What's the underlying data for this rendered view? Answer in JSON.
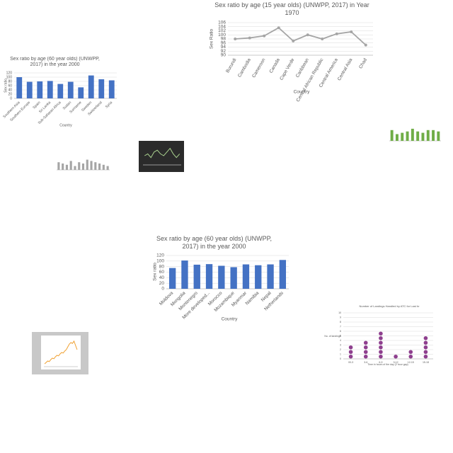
{
  "chart_data": [
    {
      "type": "line",
      "title": "Sex ratio by age (15 year olds) (UNWPP, 2017) in Year 1970",
      "y_label": "Sex Ratio",
      "x_label": "Country",
      "categories": [
        "Burundi",
        "Cambodia",
        "Cameroon",
        "Canada",
        "Cape Verde",
        "Caribbean",
        "Central African Republic",
        "Central America",
        "Central Asia",
        "Chad"
      ],
      "values": [
        98,
        98.5,
        99.5,
        103.5,
        97,
        100,
        98,
        100.5,
        101.5,
        95
      ],
      "color": "#a5a5a5",
      "ylim": [
        90,
        106
      ],
      "yticks": [
        90,
        92,
        94,
        96,
        98,
        100,
        102,
        104,
        106
      ],
      "grid": true
    },
    {
      "type": "bar",
      "title": "Sex ratio by age (60 year olds) (UNWPP, 2017) in the year 2000",
      "y_label": "Sex ratio",
      "x_label": "Country",
      "categories": [
        "Southern Asia",
        "Southern Europe",
        "Spain",
        "Sri Lanka",
        "Sub-Saharan Africa",
        "Sudan",
        "Suriname",
        "Sweden",
        "Switzerland",
        "Syria"
      ],
      "values": [
        100,
        78,
        80,
        82,
        68,
        78,
        52,
        108,
        90,
        85
      ],
      "color": "#4472c4",
      "ylim": [
        0,
        120
      ],
      "yticks": [
        0,
        20,
        40,
        60,
        80,
        100,
        120
      ],
      "grid": true
    },
    {
      "type": "bar",
      "title": "Sex ratio by age (60 year olds) (UNWPP, 2017) in the year 2000",
      "y_label": "Sex ratio",
      "x_label": "Country",
      "categories": [
        "Moldova",
        "Mongolia",
        "Montenegro",
        "More developed...",
        "Morocco",
        "Mozambique",
        "Myanmar",
        "Namibia",
        "Nepal",
        "Netherlands"
      ],
      "values": [
        75,
        102,
        87,
        89,
        83,
        78,
        88,
        85,
        88,
        104
      ],
      "color": "#4472c4",
      "ylim": [
        0,
        120
      ],
      "yticks": [
        0,
        20,
        40,
        60,
        80,
        100,
        120
      ],
      "grid": true
    },
    {
      "type": "dot",
      "title": "Number of Landings Handled by ATC for Last hr",
      "y_label": "No. of landings",
      "x_label": "Time in hours of the day (2 hour gap)",
      "categories": [
        "00-3",
        "3-6",
        "6-9",
        "9-12",
        "12-15",
        "15-18"
      ],
      "values": [
        3,
        4,
        6,
        1,
        2,
        5
      ],
      "color": "#8e3f8e",
      "ylim": [
        0,
        10
      ],
      "yticks": [
        0,
        1,
        2,
        3,
        4,
        5,
        6,
        7,
        8,
        9,
        10
      ],
      "grid": true
    },
    {
      "type": "line",
      "values": [
        10,
        15,
        20,
        18,
        25,
        30,
        28,
        35,
        40,
        38,
        45,
        50,
        48,
        55,
        60,
        70,
        80,
        85,
        82,
        90,
        75,
        60
      ],
      "color": "#f0a030",
      "ylim": [
        0,
        100
      ]
    },
    {
      "type": "bar",
      "values": [
        8,
        5,
        6,
        7,
        9,
        7,
        6,
        8,
        8,
        7
      ],
      "color": "#70ad47",
      "ylim": [
        0,
        10
      ]
    },
    {
      "type": "bar",
      "values": [
        6,
        5,
        4,
        7,
        3,
        6,
        5,
        8,
        7,
        6,
        5,
        4,
        3
      ],
      "color": "#a5a5a5",
      "ylim": [
        0,
        10
      ]
    },
    {
      "type": "line",
      "values": [
        5,
        6,
        4,
        7,
        8,
        6,
        5,
        7,
        9,
        6,
        4,
        6
      ],
      "color": "#a9d18e",
      "ylim": [
        0,
        10
      ]
    }
  ]
}
